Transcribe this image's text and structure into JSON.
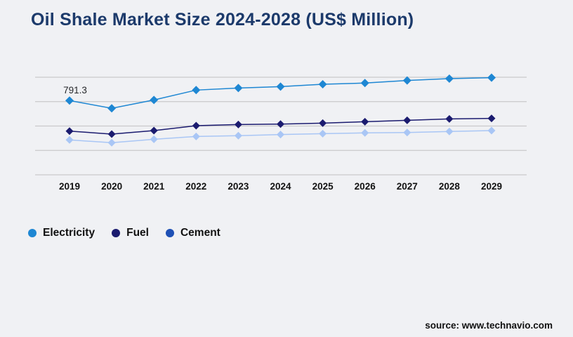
{
  "page": {
    "title": "Oil Shale Market Size 2024-2028 (US$ Million)",
    "source": "source: www.technavio.com"
  },
  "colors": {
    "background": "#f0f1f4",
    "title": "#1c3a6b",
    "gridline": "#c9c9cb",
    "axis_label": "#111111",
    "annotation": "#26282b"
  },
  "legend": {
    "items": [
      {
        "label": "Electricity",
        "color": "#1e87d3"
      },
      {
        "label": "Fuel",
        "color": "#1b1b6f"
      },
      {
        "label": "Cement",
        "color": "#1e50b5"
      }
    ]
  },
  "chart_data": {
    "type": "line",
    "title": "Oil Shale Market Size 2024-2028 (US$ Million)",
    "categories": [
      "2019",
      "2020",
      "2021",
      "2022",
      "2023",
      "2024",
      "2025",
      "2026",
      "2027",
      "2028",
      "2029"
    ],
    "series": [
      {
        "name": "Electricity",
        "color": "#1e87d3",
        "values": [
          791.3,
          709,
          798,
          903,
          925,
          940,
          965,
          978,
          1005,
          1025,
          1035
        ]
      },
      {
        "name": "Fuel",
        "color": "#1b1b6f",
        "values": [
          466,
          434,
          471,
          524,
          536,
          541,
          551,
          566,
          581,
          596,
          601
        ]
      },
      {
        "name": "Cement",
        "color": "#a9c6f5",
        "values": [
          372,
          342,
          379,
          409,
          417,
          429,
          439,
          447,
          451,
          462,
          471
        ]
      }
    ],
    "annotations": [
      {
        "series": "Electricity",
        "category": "2019",
        "text": "791.3"
      }
    ],
    "xlabel": "",
    "ylabel": "",
    "ylim": [
      0,
      1040
    ],
    "gridline_count": 5,
    "grid": true,
    "y_axis_visible": false,
    "legend_position": "bottom-left",
    "marker": "diamond"
  }
}
